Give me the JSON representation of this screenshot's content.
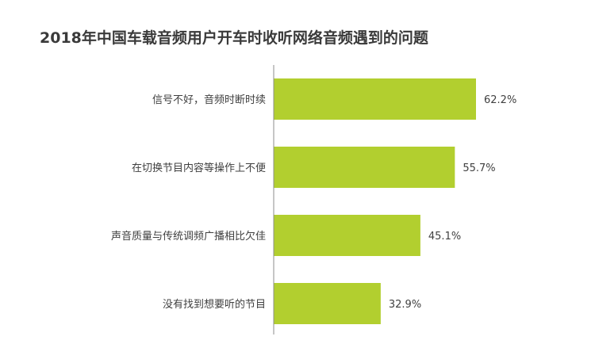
{
  "chart_data": {
    "type": "bar",
    "orientation": "horizontal",
    "title": "2018年中国车载音频用户开车时收听网络音频遇到的问题",
    "categories": [
      "信号不好，音频时断时续",
      "在切换节目内容等操作上不便",
      "声音质量与传统调频广播相比欠佳",
      "没有找到想要听的节目"
    ],
    "values": [
      62.2,
      55.7,
      45.1,
      32.9
    ],
    "value_labels": [
      "62.2%",
      "55.7%",
      "45.1%",
      "32.9%"
    ],
    "xlim": [
      0,
      100
    ],
    "grid": false,
    "legend": "none",
    "colors": {
      "bar": "#b2cf2f",
      "axis": "#8c8c8c",
      "title": "#3a3a3a",
      "text": "#404040"
    }
  }
}
